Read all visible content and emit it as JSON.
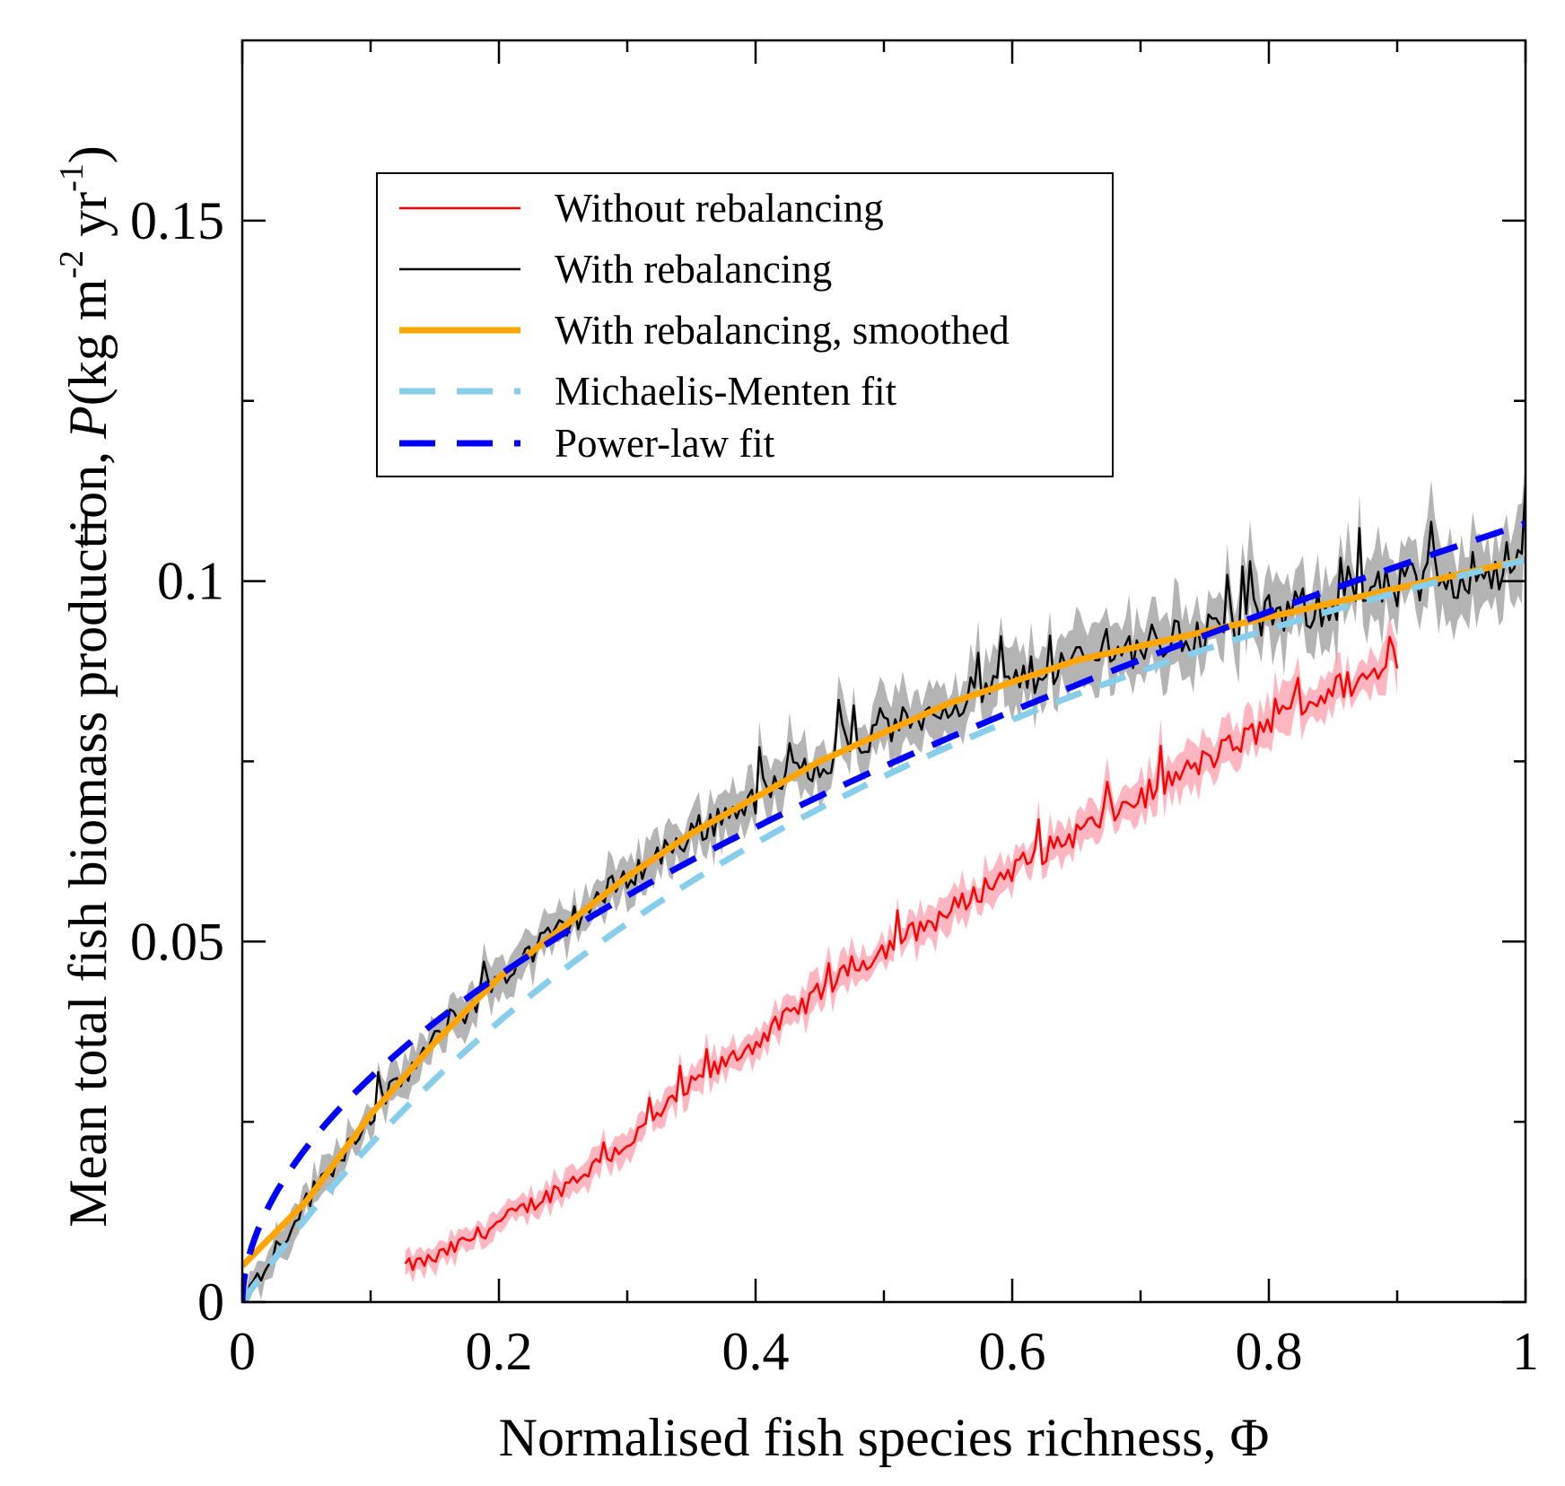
{
  "chart_data": {
    "type": "line",
    "title": "",
    "xlabel": "Normalised fish species richness, Φ",
    "ylabel": {
      "main": "Mean total fish biomass production,",
      "symbol": "P",
      "units_open": "(kg m",
      "exp1": "-2",
      "units_mid": " yr",
      "exp2": "-1",
      "units_close": ")"
    },
    "xlim": [
      0,
      1
    ],
    "ylim": [
      0,
      0.175
    ],
    "xticks": [
      0,
      0.2,
      0.4,
      0.6,
      0.8,
      1
    ],
    "xtick_labels": [
      "0",
      "0.2",
      "0.4",
      "0.6",
      "0.8",
      "1"
    ],
    "xminor": [
      0.1,
      0.3,
      0.5,
      0.7,
      0.9
    ],
    "yticks": [
      0,
      0.05,
      0.1,
      0.15
    ],
    "ytick_labels": [
      "0",
      "0.05",
      "0.1",
      "0.15"
    ],
    "yminor": [
      0.025,
      0.075,
      0.125
    ],
    "grid": false,
    "legend_position": "upper-left",
    "legend": [
      {
        "label": "Without rebalancing",
        "color": "#ff0000",
        "style": "solid",
        "weight": "thin"
      },
      {
        "label": "With rebalancing",
        "color": "#000000",
        "style": "solid",
        "weight": "thin"
      },
      {
        "label": "With rebalancing, smoothed",
        "color": "#ffa500",
        "style": "solid",
        "weight": "thick"
      },
      {
        "label": "Michaelis-Menten fit",
        "color": "#87ceeb",
        "style": "dashed",
        "weight": "thick"
      },
      {
        "label": "Power-law fit",
        "color": "#0000ff",
        "style": "dashed",
        "weight": "thick"
      }
    ],
    "series": [
      {
        "name": "Without rebalancing",
        "color": "#ff0000",
        "band_color": "#ffb6c1",
        "x": [
          0.13,
          0.15,
          0.2,
          0.25,
          0.3,
          0.35,
          0.4,
          0.45,
          0.5,
          0.55,
          0.6,
          0.65,
          0.7,
          0.75,
          0.8,
          0.85,
          0.9
        ],
        "y": [
          0.005,
          0.006,
          0.011,
          0.016,
          0.022,
          0.03,
          0.036,
          0.043,
          0.049,
          0.054,
          0.06,
          0.065,
          0.07,
          0.075,
          0.08,
          0.085,
          0.088
        ]
      },
      {
        "name": "With rebalancing",
        "color": "#000000",
        "band_color": "#b4b4b4",
        "x": [
          0,
          0.05,
          0.1,
          0.15,
          0.2,
          0.25,
          0.3,
          0.35,
          0.4,
          0.45,
          0.5,
          0.55,
          0.6,
          0.65,
          0.7,
          0.75,
          0.8,
          0.85,
          0.9,
          0.95,
          1.0
        ],
        "y": [
          0.0,
          0.014,
          0.026,
          0.036,
          0.045,
          0.052,
          0.059,
          0.065,
          0.07,
          0.075,
          0.079,
          0.083,
          0.086,
          0.089,
          0.091,
          0.093,
          0.095,
          0.097,
          0.099,
          0.101,
          0.103
        ]
      },
      {
        "name": "With rebalancing, smoothed",
        "color": "#ffa500",
        "x": [
          0,
          0.05,
          0.1,
          0.15,
          0.2,
          0.25,
          0.3,
          0.35,
          0.4,
          0.45,
          0.5,
          0.55,
          0.6,
          0.65,
          0.7,
          0.75,
          0.8,
          0.85,
          0.9,
          0.95,
          1.0
        ],
        "y": [
          0.005,
          0.014,
          0.026,
          0.036,
          0.045,
          0.052,
          0.059,
          0.065,
          0.07,
          0.075,
          0.079,
          0.083,
          0.086,
          0.089,
          0.091,
          0.093,
          0.095,
          0.097,
          0.099,
          0.101,
          0.103
        ]
      },
      {
        "name": "Michaelis-Menten fit",
        "color": "#87ceeb",
        "model": "michaelis-menten",
        "params": {
          "a": 0.175,
          "b": 0.7
        },
        "x": [
          0,
          0.05,
          0.1,
          0.2,
          0.3,
          0.4,
          0.5,
          0.6,
          0.7,
          0.8,
          0.9,
          1.0
        ],
        "y": [
          0.0,
          0.0117,
          0.0219,
          0.0389,
          0.0525,
          0.0636,
          0.0729,
          0.0808,
          0.0875,
          0.0933,
          0.0984,
          0.1029
        ]
      },
      {
        "name": "Power-law fit",
        "color": "#0000ff",
        "model": "power-law",
        "params": {
          "a": 0.108,
          "b": 0.54
        },
        "x": [
          0,
          0.01,
          0.05,
          0.1,
          0.2,
          0.3,
          0.4,
          0.5,
          0.6,
          0.7,
          0.8,
          0.9,
          1.0
        ],
        "y": [
          0.0,
          0.0089,
          0.0214,
          0.0311,
          0.0453,
          0.0565,
          0.0659,
          0.0744,
          0.0821,
          0.0892,
          0.0959,
          0.1022,
          0.108
        ]
      }
    ]
  }
}
